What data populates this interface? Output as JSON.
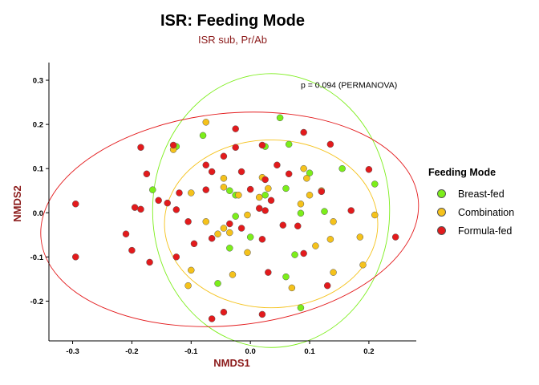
{
  "chart_data": {
    "type": "scatter",
    "title": "ISR: Feeding Mode",
    "subtitle": "ISR sub, Pr/Ab",
    "xlabel": "NMDS1",
    "ylabel": "NMDS2",
    "xlim": [
      -0.34,
      0.28
    ],
    "ylim": [
      -0.29,
      0.34
    ],
    "xticks": [
      -0.3,
      -0.2,
      -0.1,
      0.0,
      0.1,
      0.2
    ],
    "yticks": [
      -0.2,
      -0.1,
      0.0,
      0.1,
      0.2,
      0.3
    ],
    "xtick_labels": [
      "-0.3",
      "-0.2",
      "-0.1",
      "0.0",
      "0.1",
      "0.2"
    ],
    "ytick_labels": [
      "-0.2",
      "-0.1",
      "0.0",
      "0.1",
      "0.2",
      "0.3"
    ],
    "annotation": "p =  0.094 (PERMANOVA)",
    "annotation_position": [
      0.085,
      0.29
    ],
    "grid": false,
    "legend_position": "right",
    "legend_title": "Feeding Mode",
    "series": [
      {
        "name": "Breast-fed",
        "color": "#7cee1a",
        "ellipse": {
          "center": [
            0.035,
            0.005
          ],
          "radii": [
            0.2,
            0.31
          ],
          "angle": 0
        },
        "points": [
          [
            0.05,
            0.215
          ],
          [
            -0.08,
            0.175
          ],
          [
            -0.125,
            0.15
          ],
          [
            0.065,
            0.155
          ],
          [
            0.025,
            0.15
          ],
          [
            -0.165,
            0.052
          ],
          [
            0.155,
            0.1
          ],
          [
            0.21,
            0.065
          ],
          [
            0.1,
            0.09
          ],
          [
            -0.035,
            0.05
          ],
          [
            -0.025,
            0.04
          ],
          [
            0.06,
            0.055
          ],
          [
            0.025,
            0.04
          ],
          [
            0.085,
            -0.001
          ],
          [
            -0.025,
            -0.008
          ],
          [
            0.125,
            0.003
          ],
          [
            0.0,
            -0.055
          ],
          [
            -0.035,
            -0.08
          ],
          [
            0.075,
            -0.095
          ],
          [
            0.06,
            -0.145
          ],
          [
            -0.055,
            -0.16
          ],
          [
            0.085,
            -0.215
          ]
        ]
      },
      {
        "name": "Combination",
        "color": "#f5c21b",
        "ellipse": {
          "center": [
            0.035,
            -0.025
          ],
          "radii": [
            0.18,
            0.19
          ],
          "angle": 0
        },
        "points": [
          [
            -0.075,
            0.205
          ],
          [
            -0.13,
            0.143
          ],
          [
            0.09,
            0.1
          ],
          [
            0.095,
            0.078
          ],
          [
            0.02,
            0.08
          ],
          [
            -0.045,
            0.078
          ],
          [
            0.03,
            0.055
          ],
          [
            -0.1,
            0.045
          ],
          [
            0.12,
            0.05
          ],
          [
            0.1,
            0.04
          ],
          [
            -0.045,
            0.058
          ],
          [
            -0.02,
            0.04
          ],
          [
            0.085,
            0.02
          ],
          [
            0.015,
            0.035
          ],
          [
            -0.075,
            -0.02
          ],
          [
            0.14,
            -0.02
          ],
          [
            -0.045,
            -0.035
          ],
          [
            -0.005,
            -0.005
          ],
          [
            0.21,
            -0.005
          ],
          [
            -0.055,
            -0.048
          ],
          [
            -0.035,
            -0.045
          ],
          [
            0.11,
            -0.075
          ],
          [
            0.135,
            -0.06
          ],
          [
            0.185,
            -0.055
          ],
          [
            -0.005,
            -0.09
          ],
          [
            -0.1,
            -0.13
          ],
          [
            -0.03,
            -0.14
          ],
          [
            0.14,
            -0.135
          ],
          [
            -0.105,
            -0.165
          ],
          [
            0.07,
            -0.17
          ],
          [
            0.19,
            -0.118
          ]
        ]
      },
      {
        "name": "Formula-fed",
        "color": "#e31a1c",
        "ellipse": {
          "center": [
            -0.035,
            -0.015
          ],
          "radii": [
            0.32,
            0.24
          ],
          "angle": 6
        },
        "points": [
          [
            -0.185,
            0.148
          ],
          [
            -0.13,
            0.153
          ],
          [
            -0.025,
            0.19
          ],
          [
            -0.045,
            0.128
          ],
          [
            -0.025,
            0.148
          ],
          [
            0.02,
            0.153
          ],
          [
            0.09,
            0.182
          ],
          [
            0.135,
            0.155
          ],
          [
            -0.075,
            0.108
          ],
          [
            -0.065,
            0.093
          ],
          [
            -0.175,
            0.088
          ],
          [
            -0.015,
            0.093
          ],
          [
            0.045,
            0.108
          ],
          [
            0.025,
            0.075
          ],
          [
            0.0,
            0.053
          ],
          [
            0.2,
            0.098
          ],
          [
            -0.195,
            0.012
          ],
          [
            -0.155,
            0.028
          ],
          [
            -0.14,
            0.022
          ],
          [
            -0.12,
            0.045
          ],
          [
            -0.075,
            0.052
          ],
          [
            0.035,
            0.028
          ],
          [
            0.065,
            0.088
          ],
          [
            0.12,
            0.048
          ],
          [
            -0.295,
            0.02
          ],
          [
            -0.125,
            0.007
          ],
          [
            -0.105,
            -0.02
          ],
          [
            -0.035,
            -0.025
          ],
          [
            0.015,
            0.01
          ],
          [
            0.025,
            0.005
          ],
          [
            -0.015,
            -0.035
          ],
          [
            0.17,
            0.005
          ],
          [
            -0.21,
            -0.048
          ],
          [
            0.055,
            -0.028
          ],
          [
            0.08,
            -0.03
          ],
          [
            -0.185,
            0.008
          ],
          [
            -0.095,
            -0.07
          ],
          [
            -0.065,
            -0.058
          ],
          [
            0.02,
            -0.06
          ],
          [
            0.245,
            -0.055
          ],
          [
            -0.2,
            -0.085
          ],
          [
            -0.17,
            -0.112
          ],
          [
            -0.125,
            -0.1
          ],
          [
            -0.295,
            -0.1
          ],
          [
            0.09,
            -0.092
          ],
          [
            0.03,
            -0.135
          ],
          [
            0.13,
            -0.165
          ],
          [
            -0.045,
            -0.225
          ],
          [
            -0.065,
            -0.24
          ],
          [
            0.02,
            -0.23
          ]
        ]
      }
    ]
  }
}
